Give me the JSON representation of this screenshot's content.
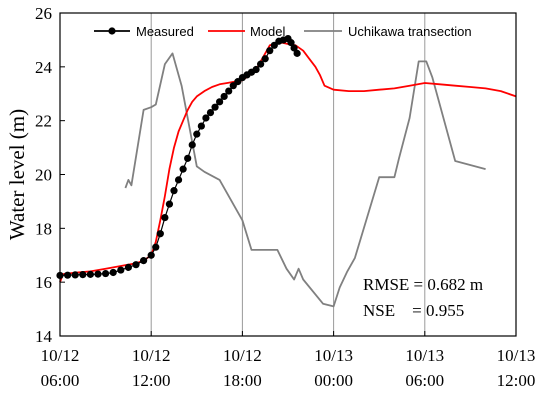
{
  "chart_data": {
    "type": "line",
    "title": "",
    "xlabel": "",
    "ylabel": "Water level (m)",
    "xlim": [
      0,
      30
    ],
    "ylim": [
      14,
      26
    ],
    "x_unit": "hours after 10/12 06:00",
    "yticks": [
      14,
      16,
      18,
      20,
      22,
      24,
      26
    ],
    "xticks": [
      {
        "x": 0,
        "date": "10/12",
        "time": "06:00"
      },
      {
        "x": 6,
        "date": "10/12",
        "time": "12:00"
      },
      {
        "x": 12,
        "date": "10/12",
        "time": "18:00"
      },
      {
        "x": 18,
        "date": "10/13",
        "time": "00:00"
      },
      {
        "x": 24,
        "date": "10/13",
        "time": "06:00"
      },
      {
        "x": 30,
        "date": "10/13",
        "time": "12:00"
      }
    ],
    "vlines_x": [
      6,
      12,
      18,
      24
    ],
    "legend_position": "top",
    "series": [
      {
        "name": "Measured",
        "color": "#000000",
        "style": "line-markers",
        "x": [
          0,
          0.5,
          1,
          1.5,
          2,
          2.5,
          3,
          3.5,
          4,
          4.5,
          5,
          5.5,
          6,
          6.3,
          6.6,
          6.9,
          7.2,
          7.5,
          7.8,
          8.1,
          8.4,
          8.7,
          9.0,
          9.3,
          9.6,
          9.9,
          10.2,
          10.5,
          10.8,
          11.1,
          11.4,
          11.7,
          12.0,
          12.3,
          12.6,
          12.9,
          13.2,
          13.5,
          13.8,
          14.1,
          14.4,
          14.7,
          15.0,
          15.2,
          15.4,
          15.6
        ],
        "y": [
          16.25,
          16.26,
          16.27,
          16.28,
          16.29,
          16.3,
          16.32,
          16.36,
          16.45,
          16.55,
          16.65,
          16.8,
          17.0,
          17.3,
          17.8,
          18.4,
          18.9,
          19.4,
          19.8,
          20.2,
          20.6,
          21.1,
          21.5,
          21.8,
          22.1,
          22.3,
          22.5,
          22.7,
          22.9,
          23.1,
          23.3,
          23.45,
          23.6,
          23.7,
          23.8,
          23.9,
          24.1,
          24.3,
          24.6,
          24.8,
          24.95,
          25.0,
          25.05,
          24.9,
          24.7,
          24.5
        ]
      },
      {
        "name": "Model",
        "color": "#ff0000",
        "style": "line",
        "x": [
          0,
          0.2,
          1,
          2,
          3,
          4,
          5,
          5.5,
          6,
          6.3,
          6.6,
          6.9,
          7.2,
          7.5,
          7.8,
          8.1,
          8.4,
          8.7,
          9.0,
          9.5,
          10.0,
          10.5,
          11.0,
          11.5,
          12.0,
          12.5,
          13.0,
          13.5,
          13.8,
          14.2,
          14.6,
          15.0,
          15.5,
          16.0,
          16.4,
          16.8,
          17.1,
          17.4,
          18.0,
          19.0,
          20.0,
          21.0,
          22.0,
          23.0,
          24.0,
          25.0,
          26.0,
          27.0,
          28.0,
          29.0,
          30.0
        ],
        "y": [
          16.0,
          16.3,
          16.35,
          16.4,
          16.5,
          16.6,
          16.7,
          16.8,
          17.0,
          17.5,
          18.3,
          19.2,
          20.2,
          21.0,
          21.6,
          22.0,
          22.4,
          22.7,
          22.9,
          23.1,
          23.25,
          23.35,
          23.4,
          23.45,
          23.5,
          23.7,
          24.0,
          24.5,
          24.8,
          24.85,
          24.9,
          24.85,
          24.8,
          24.6,
          24.3,
          24.0,
          23.7,
          23.3,
          23.15,
          23.1,
          23.1,
          23.15,
          23.2,
          23.3,
          23.4,
          23.35,
          23.3,
          23.25,
          23.2,
          23.1,
          22.9
        ]
      },
      {
        "name": "Uchikawa transection",
        "color": "#808080",
        "style": "line",
        "x": [
          4.3,
          4.5,
          4.7,
          5.5,
          6.0,
          6.3,
          6.9,
          7.4,
          8.0,
          9.0,
          9.5,
          10.5,
          12.0,
          12.6,
          14.3,
          14.9,
          15.4,
          15.7,
          16.0,
          17.3,
          18.0,
          18.4,
          18.9,
          19.4,
          21.0,
          22.0,
          22.3,
          23.0,
          23.6,
          24.1,
          24.5,
          26.0,
          28.0
        ],
        "y": [
          19.5,
          19.8,
          19.6,
          22.4,
          22.5,
          22.6,
          24.1,
          24.5,
          23.3,
          20.3,
          20.1,
          19.8,
          18.3,
          17.2,
          17.2,
          16.5,
          16.1,
          16.5,
          16.1,
          15.2,
          15.1,
          15.8,
          16.4,
          16.9,
          19.9,
          19.9,
          20.6,
          22.1,
          24.2,
          24.2,
          23.6,
          20.5,
          20.2
        ]
      }
    ],
    "annotations": {
      "rmse_line": "RMSE = 0.682 m",
      "nse_line": "NSE    = 0.955"
    }
  }
}
